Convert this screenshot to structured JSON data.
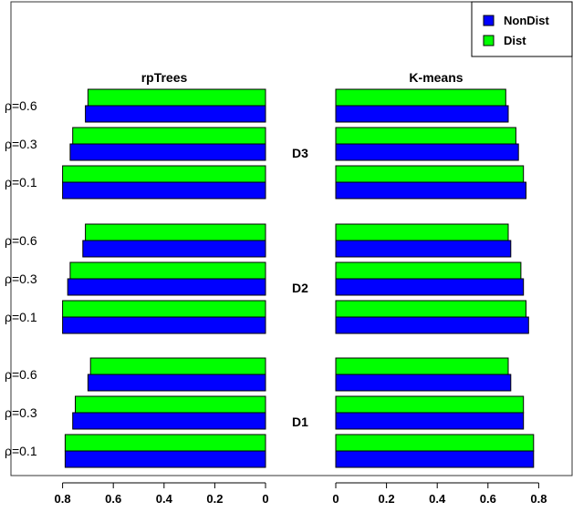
{
  "chart_data": {
    "type": "bar",
    "orientation": "horizontal",
    "panels": [
      {
        "title": "rpTrees",
        "direction": "reversed",
        "xlim": [
          0.8,
          0
        ],
        "ticks": [
          "0.8",
          "0.6",
          "0.4",
          "0.2",
          "0"
        ]
      },
      {
        "title": "K-means",
        "direction": "normal",
        "xlim": [
          0,
          0.8
        ],
        "ticks": [
          "0",
          "0.2",
          "0.4",
          "0.6",
          "0.8"
        ]
      }
    ],
    "groups": [
      {
        "label": "D3",
        "rows": [
          {
            "rho": "ρ=0.6",
            "rpTrees": {
              "NonDist": 0.71,
              "Dist": 0.7
            },
            "K-means": {
              "NonDist": 0.68,
              "Dist": 0.67
            }
          },
          {
            "rho": "ρ=0.3",
            "rpTrees": {
              "NonDist": 0.77,
              "Dist": 0.76
            },
            "K-means": {
              "NonDist": 0.72,
              "Dist": 0.71
            }
          },
          {
            "rho": "ρ=0.1",
            "rpTrees": {
              "NonDist": 0.8,
              "Dist": 0.8
            },
            "K-means": {
              "NonDist": 0.75,
              "Dist": 0.74
            }
          }
        ]
      },
      {
        "label": "D2",
        "rows": [
          {
            "rho": "ρ=0.6",
            "rpTrees": {
              "NonDist": 0.72,
              "Dist": 0.71
            },
            "K-means": {
              "NonDist": 0.69,
              "Dist": 0.68
            }
          },
          {
            "rho": "ρ=0.3",
            "rpTrees": {
              "NonDist": 0.78,
              "Dist": 0.77
            },
            "K-means": {
              "NonDist": 0.74,
              "Dist": 0.73
            }
          },
          {
            "rho": "ρ=0.1",
            "rpTrees": {
              "NonDist": 0.8,
              "Dist": 0.8
            },
            "K-means": {
              "NonDist": 0.76,
              "Dist": 0.75
            }
          }
        ]
      },
      {
        "label": "D1",
        "rows": [
          {
            "rho": "ρ=0.6",
            "rpTrees": {
              "NonDist": 0.7,
              "Dist": 0.69
            },
            "K-means": {
              "NonDist": 0.69,
              "Dist": 0.68
            }
          },
          {
            "rho": "ρ=0.3",
            "rpTrees": {
              "NonDist": 0.76,
              "Dist": 0.75
            },
            "K-means": {
              "NonDist": 0.74,
              "Dist": 0.74
            }
          },
          {
            "rho": "ρ=0.1",
            "rpTrees": {
              "NonDist": 0.79,
              "Dist": 0.79
            },
            "K-means": {
              "NonDist": 0.78,
              "Dist": 0.78
            }
          }
        ]
      }
    ],
    "series": [
      {
        "name": "NonDist",
        "color": "#0000ff"
      },
      {
        "name": "Dist",
        "color": "#00ff00"
      }
    ],
    "legend": {
      "position": "top-right"
    },
    "grid": false
  }
}
